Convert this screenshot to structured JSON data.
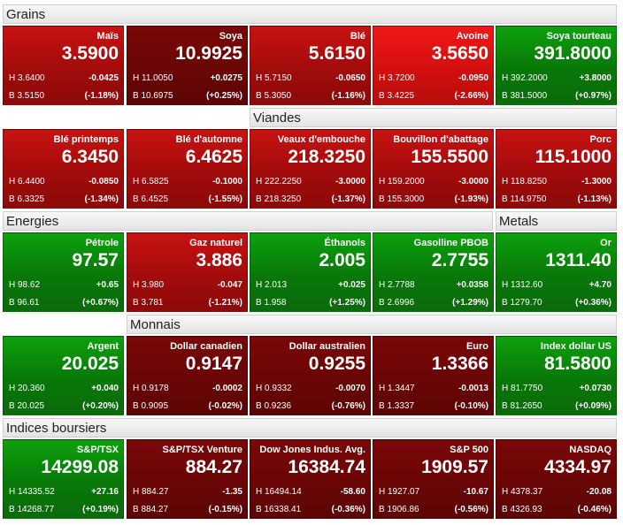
{
  "sections": [
    {
      "title": "Grains",
      "tiles": [
        {
          "name": "Maïs",
          "price": "3.5900",
          "high": "H 3.6400",
          "low": "B 3.5150",
          "change": "-0.0425",
          "pct": "(-1.18%)",
          "trend": "down"
        },
        {
          "name": "Soya",
          "price": "10.9925",
          "high": "H 11.0050",
          "low": "B 10.6975",
          "change": "+0.0275",
          "pct": "(+0.25%)",
          "trend": "dark"
        },
        {
          "name": "Blé",
          "price": "5.6150",
          "high": "H 5.7150",
          "low": "B 5.3050",
          "change": "-0.0650",
          "pct": "(-1.16%)",
          "trend": "down"
        },
        {
          "name": "Avoine",
          "price": "3.5650",
          "high": "H 3.7200",
          "low": "B 3.4225",
          "change": "-0.0950",
          "pct": "(-2.66%)",
          "trend": "bright"
        },
        {
          "name": "Soya tourteau",
          "price": "391.8000",
          "high": "H 392.2000",
          "low": "B 381.5000",
          "change": "+3.8000",
          "pct": "(+0.97%)",
          "trend": "up"
        }
      ]
    },
    {
      "title": "Viandes",
      "tiles": [
        {
          "name": "Blé printemps",
          "price": "6.3450",
          "high": "H 6.4400",
          "low": "B 6.3325",
          "change": "-0.0850",
          "pct": "(-1.34%)",
          "trend": "down"
        },
        {
          "name": "Blé d'automne",
          "price": "6.4625",
          "high": "H 6.5825",
          "low": "B 6.4525",
          "change": "-0.1000",
          "pct": "(-1.55%)",
          "trend": "down"
        },
        {
          "name": "Veaux d'embouche",
          "price": "218.3250",
          "high": "H 222.2250",
          "low": "B 218.3250",
          "change": "-3.0000",
          "pct": "(-1.37%)",
          "trend": "down"
        },
        {
          "name": "Bouvillon d'abattage",
          "price": "155.5500",
          "high": "H 159.2000",
          "low": "B 155.3000",
          "change": "-3.0000",
          "pct": "(-1.93%)",
          "trend": "down"
        },
        {
          "name": "Porc",
          "price": "115.1000",
          "high": "H 118.8250",
          "low": "B 114.9750",
          "change": "-1.3000",
          "pct": "(-1.13%)",
          "trend": "down"
        }
      ]
    },
    {
      "title": "Energies",
      "title2": "Metals",
      "tiles": [
        {
          "name": "Pétrole",
          "price": "97.57",
          "high": "H 98.62",
          "low": "B 96.61",
          "change": "+0.65",
          "pct": "(+0.67%)",
          "trend": "up"
        },
        {
          "name": "Gaz naturel",
          "price": "3.886",
          "high": "H 3.980",
          "low": "B 3.781",
          "change": "-0.047",
          "pct": "(-1.21%)",
          "trend": "down"
        },
        {
          "name": "Éthanols",
          "price": "2.005",
          "high": "H 2.013",
          "low": "B 1.958",
          "change": "+0.025",
          "pct": "(+1.25%)",
          "trend": "up"
        },
        {
          "name": "Gasolline PBOB",
          "price": "2.7755",
          "high": "H 2.7788",
          "low": "B 2.6996",
          "change": "+0.0358",
          "pct": "(+1.29%)",
          "trend": "up"
        },
        {
          "name": "Or",
          "price": "1311.40",
          "high": "H 1312.60",
          "low": "B 1279.70",
          "change": "+4.70",
          "pct": "(+0.36%)",
          "trend": "up"
        }
      ]
    },
    {
      "title": "Monnais",
      "tiles": [
        {
          "name": "Argent",
          "price": "20.025",
          "high": "H 20.360",
          "low": "B 20.025",
          "change": "+0.040",
          "pct": "(+0.20%)",
          "trend": "up"
        },
        {
          "name": "Dollar canadien",
          "price": "0.9147",
          "high": "H 0.9178",
          "low": "B 0.9095",
          "change": "-0.0002",
          "pct": "(-0.02%)",
          "trend": "dark"
        },
        {
          "name": "Dollar australien",
          "price": "0.9255",
          "high": "H 0.9332",
          "low": "B 0.9236",
          "change": "-0.0070",
          "pct": "(-0.76%)",
          "trend": "dark"
        },
        {
          "name": "Euro",
          "price": "1.3366",
          "high": "H 1.3447",
          "low": "B 1.3337",
          "change": "-0.0013",
          "pct": "(-0.10%)",
          "trend": "dark"
        },
        {
          "name": "Index dollar US",
          "price": "81.5800",
          "high": "H 81.7750",
          "low": "B 81.2650",
          "change": "+0.0730",
          "pct": "(+0.09%)",
          "trend": "up"
        }
      ]
    },
    {
      "title": "Indices boursiers",
      "tiles": [
        {
          "name": "S&P/TSX",
          "price": "14299.08",
          "high": "H 14335.52",
          "low": "B 14268.77",
          "change": "+27.16",
          "pct": "(+0.19%)",
          "trend": "up"
        },
        {
          "name": "S&P/TSX Venture",
          "price": "884.27",
          "high": "H 884.27",
          "low": "B 884.27",
          "change": "-1.35",
          "pct": "(-0.15%)",
          "trend": "dark"
        },
        {
          "name": "Dow Jones Indus. Avg.",
          "price": "16384.74",
          "high": "H 16494.14",
          "low": "B 16338.41",
          "change": "-58.60",
          "pct": "(-0.36%)",
          "trend": "dark"
        },
        {
          "name": "S&P 500",
          "price": "1909.57",
          "high": "H 1927.07",
          "low": "B 1906.86",
          "change": "-10.67",
          "pct": "(-0.56%)",
          "trend": "dark"
        },
        {
          "name": "NASDAQ",
          "price": "4334.97",
          "high": "H 4378.37",
          "low": "B 4326.93",
          "change": "-20.08",
          "pct": "(-0.46%)",
          "trend": "dark"
        }
      ]
    }
  ]
}
